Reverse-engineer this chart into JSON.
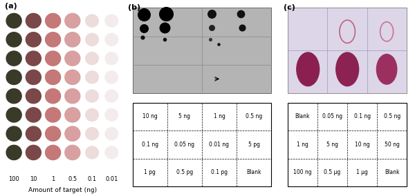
{
  "panel_a_label": "(a)",
  "panel_b_label": "(b)",
  "panel_c_label": "(c)",
  "xlabel_a": "Amount of target (ng)",
  "xticks_a": [
    "100",
    "10",
    "1",
    "0.5",
    "0.1",
    "0.01"
  ],
  "panel_b_table": [
    [
      "10 ng",
      "5 ng",
      "1 ng",
      "0.5 ng"
    ],
    [
      "0.1 ng",
      "0.05 ng",
      "0.01 ng",
      "5 pg"
    ],
    [
      "1 pg",
      "0.5 pg",
      "0.1 pg",
      "Blank"
    ]
  ],
  "panel_c_table": [
    [
      "Blank",
      "0.05 ng",
      "0.1 ng",
      "0.5 ng"
    ],
    [
      "1 ng",
      "5 ng",
      "10 ng",
      "50 ng"
    ],
    [
      "100 ng",
      "0.5 μg",
      "1 μg",
      "Blank"
    ]
  ],
  "dot_colors_col": [
    "#3a3a28",
    "#7a4848",
    "#c47878",
    "#d8a0a0",
    "#eddcdc",
    "#f4ecec"
  ],
  "n_rows_a": 8,
  "n_cols_a": 6
}
